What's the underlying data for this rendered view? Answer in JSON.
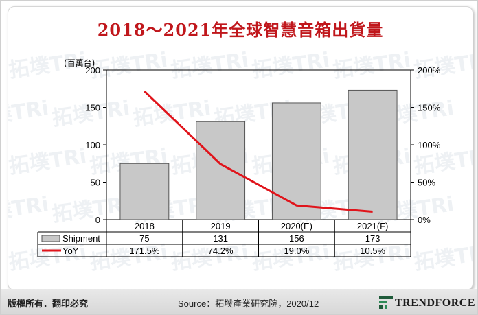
{
  "chart_data": {
    "type": "bar",
    "title": "2018～2021年全球智慧音箱出貨量",
    "y_unit_label": "(百萬台)",
    "categories": [
      "2018",
      "2019",
      "2020(E)",
      "2021(F)"
    ],
    "series": [
      {
        "name": "Shipment",
        "type": "bar",
        "values": [
          75,
          131,
          156,
          173
        ],
        "color": "#c8c8c8"
      },
      {
        "name": "YoY",
        "type": "line",
        "values": [
          171.5,
          74.2,
          19.0,
          10.5
        ],
        "color": "#e0141b"
      }
    ],
    "table_rows": [
      {
        "name": "Shipment",
        "cells": [
          "75",
          "131",
          "156",
          "173"
        ]
      },
      {
        "name": "YoY",
        "cells": [
          "171.5%",
          "74.2%",
          "19.0%",
          "10.5%"
        ]
      }
    ],
    "ylim_left": [
      0,
      200
    ],
    "yticks_left": [
      "0",
      "50",
      "100",
      "150",
      "200"
    ],
    "ylim_right": [
      0,
      200
    ],
    "yticks_right": [
      "0%",
      "50%",
      "100%",
      "150%",
      "200%"
    ],
    "grid": false
  },
  "watermark_text": "拓墣TRi",
  "footer": {
    "copyright": "版權所有．翻印必究",
    "source": "Source：拓墣產業研究院，2020/12",
    "logo_text": "TRENDFORCE"
  }
}
